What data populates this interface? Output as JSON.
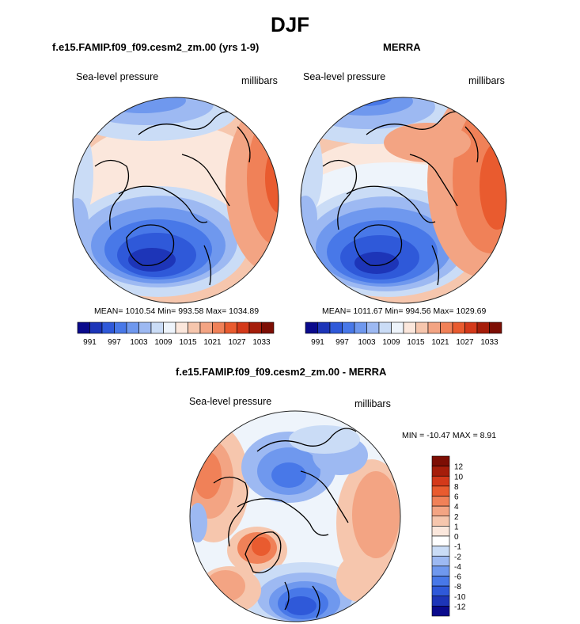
{
  "title": "DJF",
  "colors": {
    "palette": [
      "#0a0a8c",
      "#1d35b8",
      "#2f59d9",
      "#4878e8",
      "#6f98ee",
      "#9db9f2",
      "#cadcf6",
      "#eef4fb",
      "#fbe7dc",
      "#f6c6ad",
      "#f3a483",
      "#f08158",
      "#e95b2f",
      "#d4391a",
      "#a51d0a",
      "#7d0e04"
    ],
    "diff_palette": [
      "#0a0a8c",
      "#1d35b8",
      "#2f59d9",
      "#4878e8",
      "#6f98ee",
      "#9db9f2",
      "#cadcf6",
      "#ffffff",
      "#fbe7dc",
      "#f6c6ad",
      "#f3a483",
      "#f08158",
      "#e95b2f",
      "#d4391a",
      "#a51d0a",
      "#7d0e04"
    ]
  },
  "panels": {
    "model": {
      "title": "f.e15.FAMIP.f09_f09.cesm2_zm.00 (yrs 1-9)",
      "variable": "Sea-level pressure",
      "units": "millibars",
      "stats": "MEAN= 1010.54  Min= 993.58  Max= 1034.89",
      "mean": 1010.54,
      "min": 993.58,
      "max": 1034.89,
      "colorbar_ticks": [
        "991",
        "997",
        "1003",
        "1009",
        "1015",
        "1021",
        "1027",
        "1033"
      ]
    },
    "obs": {
      "title": "MERRA",
      "variable": "Sea-level pressure",
      "units": "millibars",
      "stats": "MEAN= 1011.67  Min= 994.56  Max= 1029.69",
      "mean": 1011.67,
      "min": 994.56,
      "max": 1029.69,
      "colorbar_ticks": [
        "991",
        "997",
        "1003",
        "1009",
        "1015",
        "1021",
        "1027",
        "1033"
      ]
    },
    "diff": {
      "title": "f.e15.FAMIP.f09_f09.cesm2_zm.00 - MERRA",
      "variable": "Sea-level pressure",
      "units": "millibars",
      "stats": "MIN = -10.47 MAX =   8.91",
      "min": -10.47,
      "max": 8.91,
      "colorbar_ticks": [
        "12",
        "10",
        "8",
        "6",
        "4",
        "2",
        "1",
        "0",
        "-1",
        "-2",
        "-4",
        "-6",
        "-8",
        "-10",
        "-12"
      ]
    }
  }
}
